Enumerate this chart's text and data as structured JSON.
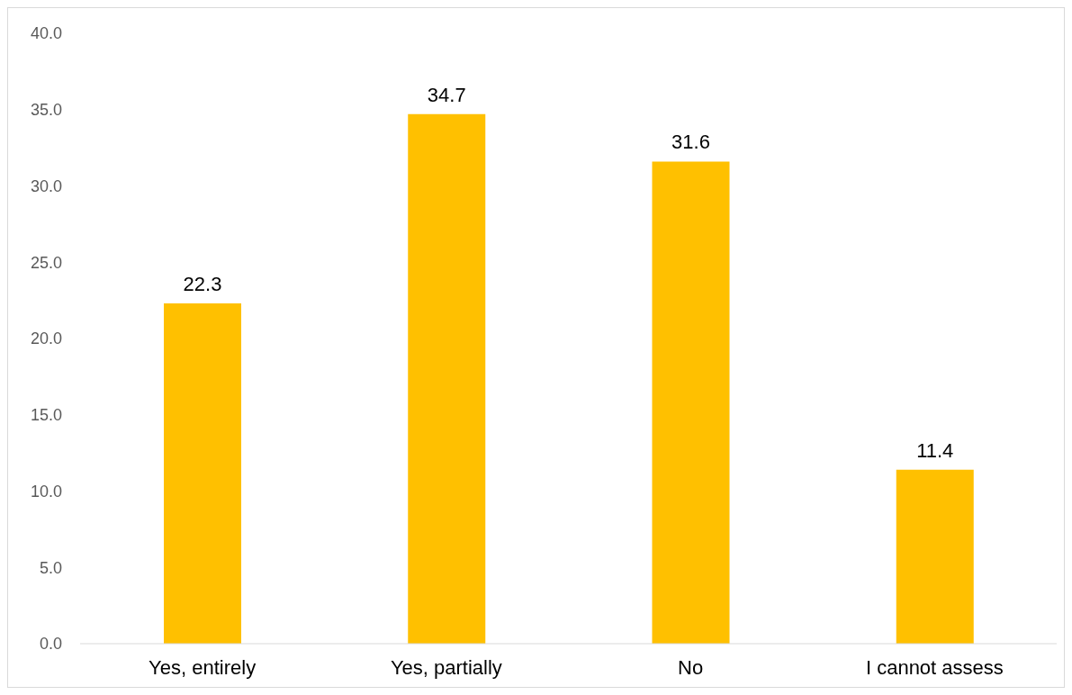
{
  "chart_data": {
    "type": "bar",
    "categories": [
      "Yes, entirely",
      "Yes, partially",
      "No",
      "I cannot assess"
    ],
    "values": [
      22.3,
      34.7,
      31.6,
      11.4
    ],
    "color": "#ffc000",
    "ylim": [
      0,
      40
    ],
    "yticks": [
      {
        "value": 0,
        "label": "0.0"
      },
      {
        "value": 5,
        "label": "5.0"
      },
      {
        "value": 10,
        "label": "10.0"
      },
      {
        "value": 15,
        "label": "15.0"
      },
      {
        "value": 20,
        "label": "20.0"
      },
      {
        "value": 25,
        "label": "25.0"
      },
      {
        "value": 30,
        "label": "30.0"
      },
      {
        "value": 35,
        "label": "35.0"
      },
      {
        "value": 40,
        "label": "40.0"
      }
    ],
    "data_labels": true,
    "grid": false,
    "legend": false
  }
}
